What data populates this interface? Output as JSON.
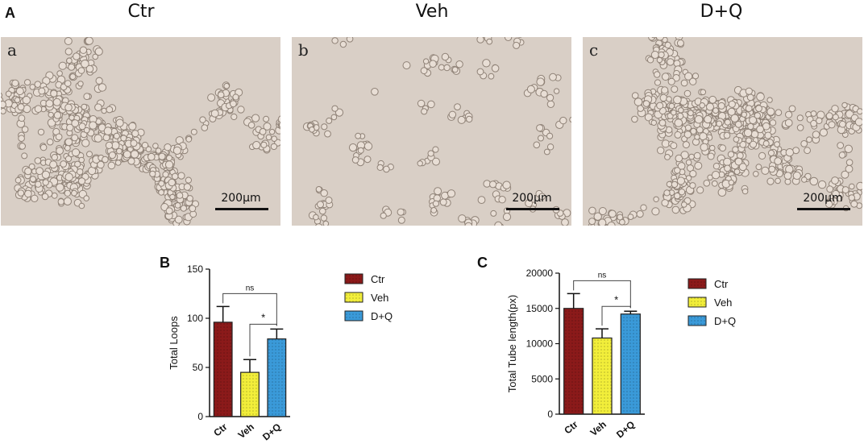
{
  "panel_labels": {
    "a": "A",
    "b": "B",
    "c": "C"
  },
  "micrographs": [
    {
      "title": "Ctr",
      "sub_label": "a",
      "scale_label": "200μm",
      "pattern": "network",
      "seed": 11
    },
    {
      "title": "Veh",
      "sub_label": "b",
      "scale_label": "200μm",
      "pattern": "clusters",
      "seed": 29
    },
    {
      "title": "D+Q",
      "sub_label": "c",
      "scale_label": "200μm",
      "pattern": "network",
      "seed": 47
    }
  ],
  "colors": {
    "ctr": "#8b1a1a",
    "veh": "#f2ee3a",
    "dq": "#3a9ad9",
    "micro_bg": "#d9cfc6",
    "cell_fill": "#e8ded5",
    "cell_edge": "#8f8277"
  },
  "chart_data": [
    {
      "type": "bar",
      "panel": "B",
      "categories": [
        "Ctr",
        "Veh",
        "D+Q"
      ],
      "values": [
        96,
        45,
        79
      ],
      "errors": [
        16,
        13,
        10
      ],
      "ylabel": "Total Loops",
      "ylim": [
        0,
        150
      ],
      "yticks": [
        0,
        50,
        100,
        150
      ],
      "legend": [
        "Ctr",
        "Veh",
        "D+Q"
      ],
      "legend_position": "right",
      "significance": [
        {
          "from": 0,
          "to": 2,
          "label": "ns"
        },
        {
          "from": 1,
          "to": 2,
          "label": "*"
        }
      ]
    },
    {
      "type": "bar",
      "panel": "C",
      "categories": [
        "Ctr",
        "Veh",
        "D+Q"
      ],
      "values": [
        15000,
        10800,
        14200
      ],
      "errors": [
        2100,
        1300,
        400
      ],
      "ylabel": "Total Tube length(px)",
      "ylim": [
        0,
        20000
      ],
      "yticks": [
        0,
        5000,
        10000,
        15000,
        20000
      ],
      "legend": [
        "Ctr",
        "Veh",
        "D+Q"
      ],
      "legend_position": "right",
      "significance": [
        {
          "from": 0,
          "to": 2,
          "label": "ns"
        },
        {
          "from": 1,
          "to": 2,
          "label": "*"
        }
      ]
    }
  ]
}
